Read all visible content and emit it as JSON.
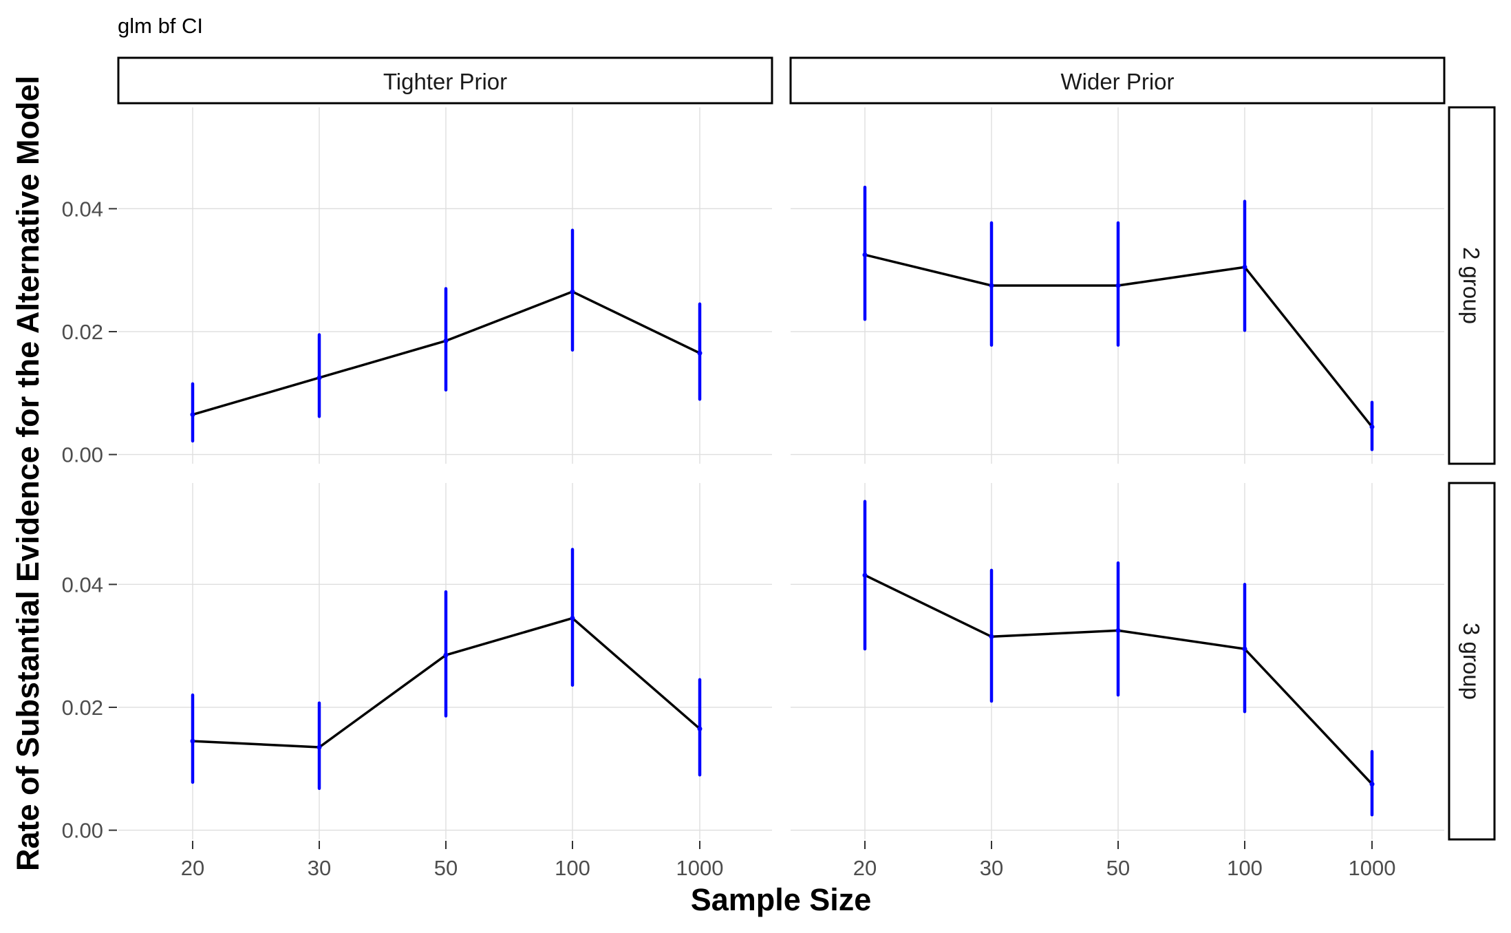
{
  "chart_data": {
    "type": "line",
    "title": "glm bf CI",
    "xlabel": "Sample Size",
    "ylabel": "Rate of Substantial Evidence for the Alternative Model",
    "x_categories": [
      "20",
      "30",
      "50",
      "100",
      "1000"
    ],
    "y_ticks": [
      "0.00",
      "0.02",
      "0.04"
    ],
    "ylim": [
      -0.0015,
      0.0565
    ],
    "grid": true,
    "line_color": "#000000",
    "errorbar_color": "#0000ff",
    "facet_columns": [
      "Tighter Prior",
      "Wider Prior"
    ],
    "facet_rows": [
      "2 group",
      "3 group"
    ],
    "panels": [
      {
        "column": "Tighter Prior",
        "row": "2 group",
        "values": [
          0.0065,
          0.0125,
          0.0185,
          0.0265,
          0.0165
        ],
        "lower": [
          0.0022,
          0.0062,
          0.0105,
          0.017,
          0.009
        ],
        "upper": [
          0.0115,
          0.0195,
          0.027,
          0.0365,
          0.0245
        ]
      },
      {
        "column": "Wider Prior",
        "row": "2 group",
        "values": [
          0.0325,
          0.0275,
          0.0275,
          0.0305,
          0.0045
        ],
        "lower": [
          0.022,
          0.0178,
          0.0178,
          0.0202,
          0.0008
        ],
        "upper": [
          0.0435,
          0.0377,
          0.0377,
          0.0412,
          0.0085
        ]
      },
      {
        "column": "Tighter Prior",
        "row": "3 group",
        "values": [
          0.0145,
          0.0135,
          0.0285,
          0.0345,
          0.0165
        ],
        "lower": [
          0.0078,
          0.0068,
          0.0186,
          0.0236,
          0.009
        ],
        "upper": [
          0.022,
          0.0207,
          0.0388,
          0.0457,
          0.0245
        ]
      },
      {
        "column": "Wider Prior",
        "row": "3 group",
        "values": [
          0.0415,
          0.0315,
          0.0325,
          0.0295,
          0.0075
        ],
        "lower": [
          0.0295,
          0.021,
          0.022,
          0.0193,
          0.0025
        ],
        "upper": [
          0.0535,
          0.0423,
          0.0435,
          0.04,
          0.0128
        ]
      }
    ]
  }
}
